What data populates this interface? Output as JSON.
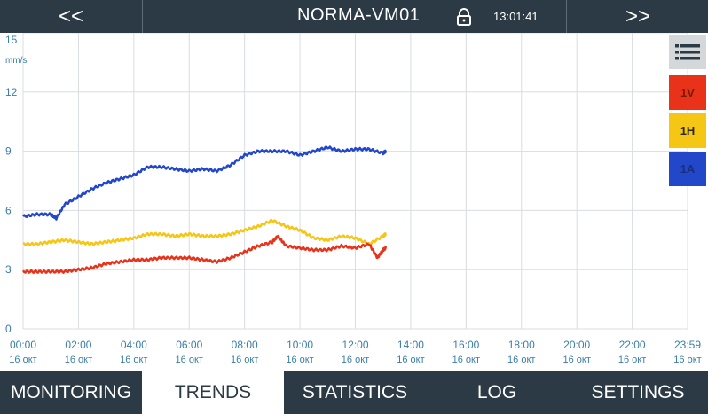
{
  "header": {
    "prev_label": "<<",
    "next_label": ">>",
    "title": "NORMA-VM01",
    "time": "13:01:41"
  },
  "legend": [
    {
      "id": "1v",
      "label": "1V",
      "color": "#e8321a"
    },
    {
      "id": "1h",
      "label": "1H",
      "color": "#f6c614"
    },
    {
      "id": "1a",
      "label": "1A",
      "color": "#2347c9"
    }
  ],
  "nav": [
    {
      "label": "MONITORING",
      "active": false
    },
    {
      "label": "TRENDS",
      "active": true
    },
    {
      "label": "STATISTICS",
      "active": false
    },
    {
      "label": "LOG",
      "active": false
    },
    {
      "label": "SETTINGS",
      "active": false
    }
  ],
  "chart_data": {
    "type": "line",
    "ylabel": "mm/s",
    "ylim": [
      0,
      15
    ],
    "yticks": [
      "0",
      "3",
      "6",
      "9",
      "12",
      "15"
    ],
    "xlim": [
      0,
      24
    ],
    "xticks": [
      {
        "time": "00:00",
        "date": "16 окт"
      },
      {
        "time": "02:00",
        "date": "16 окт"
      },
      {
        "time": "04:00",
        "date": "16 окт"
      },
      {
        "time": "06:00",
        "date": "16 окт"
      },
      {
        "time": "08:00",
        "date": "16 окт"
      },
      {
        "time": "10:00",
        "date": "16 окт"
      },
      {
        "time": "12:00",
        "date": "16 окт"
      },
      {
        "time": "14:00",
        "date": "16 окт"
      },
      {
        "time": "16:00",
        "date": "16 окт"
      },
      {
        "time": "18:00",
        "date": "16 окт"
      },
      {
        "time": "20:00",
        "date": "16 окт"
      },
      {
        "time": "22:00",
        "date": "16 окт"
      },
      {
        "time": "23:59",
        "date": "16 окт"
      }
    ],
    "grid": true,
    "series": [
      {
        "name": "1A",
        "color": "#2347c9",
        "x": [
          0,
          0.5,
          1,
          1.2,
          1.5,
          2,
          2.5,
          3,
          3.5,
          4,
          4.5,
          5,
          5.5,
          6,
          6.5,
          7,
          7.5,
          8,
          8.5,
          9,
          9.5,
          10,
          10.5,
          11,
          11.5,
          12,
          12.5,
          13,
          13.1
        ],
        "y": [
          5.7,
          5.8,
          5.8,
          5.6,
          6.3,
          6.7,
          7.1,
          7.4,
          7.6,
          7.8,
          8.2,
          8.2,
          8.1,
          8.0,
          8.1,
          8.0,
          8.3,
          8.8,
          9.0,
          9.0,
          9.0,
          8.8,
          9.0,
          9.2,
          9.0,
          9.1,
          9.1,
          8.9,
          9.0
        ]
      },
      {
        "name": "1H",
        "color": "#f6c614",
        "x": [
          0,
          0.5,
          1,
          1.5,
          2,
          2.5,
          3,
          3.5,
          4,
          4.5,
          5,
          5.5,
          6,
          6.5,
          7,
          7.5,
          8,
          8.5,
          9,
          9.5,
          10,
          10.5,
          11,
          11.5,
          12,
          12.5,
          13,
          13.1
        ],
        "y": [
          4.3,
          4.3,
          4.4,
          4.5,
          4.4,
          4.3,
          4.4,
          4.5,
          4.6,
          4.8,
          4.8,
          4.7,
          4.8,
          4.7,
          4.7,
          4.8,
          5.0,
          5.2,
          5.5,
          5.2,
          5.0,
          4.6,
          4.5,
          4.7,
          4.6,
          4.3,
          4.7,
          4.8
        ]
      },
      {
        "name": "1V",
        "color": "#e8321a",
        "x": [
          0,
          0.5,
          1,
          1.5,
          2,
          2.5,
          3,
          3.5,
          4,
          4.5,
          5,
          5.5,
          6,
          6.5,
          7,
          7.5,
          8,
          8.5,
          9,
          9.2,
          9.5,
          10,
          10.5,
          11,
          11.5,
          12,
          12.5,
          12.8,
          13,
          13.1
        ],
        "y": [
          2.9,
          2.9,
          2.9,
          2.9,
          3.0,
          3.1,
          3.3,
          3.4,
          3.5,
          3.5,
          3.6,
          3.6,
          3.6,
          3.5,
          3.4,
          3.6,
          3.9,
          4.2,
          4.4,
          4.7,
          4.2,
          4.1,
          4.0,
          4.0,
          4.2,
          4.1,
          4.3,
          3.6,
          4.0,
          4.1
        ]
      }
    ]
  }
}
